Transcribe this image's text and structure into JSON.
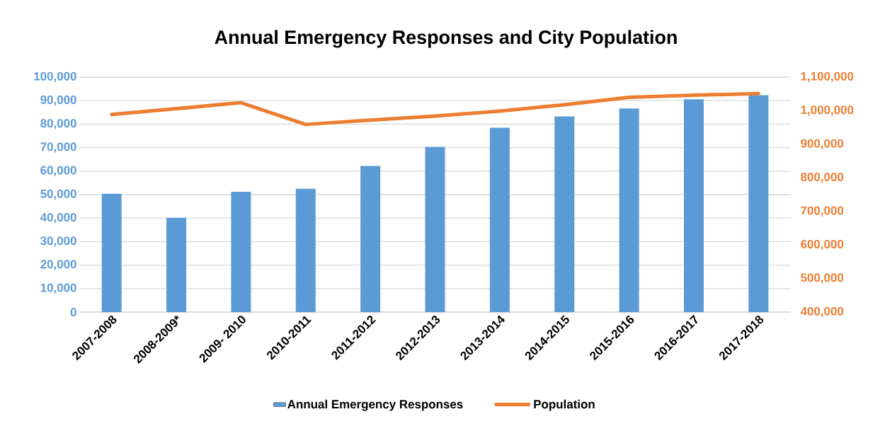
{
  "chart_data": {
    "type": "bar",
    "title": "Annual Emergency Responses and City Population",
    "categories": [
      "2007-2008",
      "2008-2009*",
      "2009- 2010",
      "2010-2011",
      "2011-2012",
      "2012-2013",
      "2013-2014",
      "2014-2015",
      "2015-2016",
      "2016-2017",
      "2017-2018"
    ],
    "series": [
      {
        "name": "Annual Emergency Responses",
        "color": "#5b9bd5",
        "values": [
          50400,
          40100,
          51200,
          52500,
          62200,
          70300,
          78500,
          83300,
          86700,
          90600,
          92300
        ]
      },
      {
        "name": "Population",
        "type": "line",
        "axis": "y2",
        "color": "#ed7d31",
        "values": [
          989000,
          1006000,
          1024000,
          959000,
          972000,
          984000,
          999000,
          1018000,
          1040000,
          1046000,
          1051000
        ]
      }
    ],
    "ylim": [
      0,
      100000
    ],
    "yticks": [
      0,
      {
        "value": 10000,
        "label": "10,000"
      },
      {
        "value": 20000,
        "label": "20,000"
      },
      {
        "value": 30000,
        "label": "30,000"
      },
      {
        "value": 40000,
        "label": "40,000"
      },
      {
        "value": 50000,
        "label": "50,000"
      },
      {
        "value": 60000,
        "label": "60,000"
      },
      {
        "value": 70000,
        "label": "70,000"
      },
      {
        "value": 80000,
        "label": "80,000"
      },
      {
        "value": 90000,
        "label": "90,000"
      },
      {
        "value": 100000,
        "label": "100,000"
      }
    ],
    "y2lim": [
      400000,
      1100000
    ],
    "y2ticks": [
      {
        "value": 400000,
        "label": "400,000"
      },
      {
        "value": 500000,
        "label": "500,000"
      },
      {
        "value": 600000,
        "label": "600,000"
      },
      {
        "value": 700000,
        "label": "700,000"
      },
      {
        "value": 800000,
        "label": "800,000"
      },
      {
        "value": 900000,
        "label": "900,000"
      },
      {
        "value": 1000000,
        "label": "1,000,000"
      },
      {
        "value": 1100000,
        "label": "1,100,000"
      }
    ],
    "grid": "y",
    "legend": "bottom",
    "marker": "none",
    "line_style": "solid"
  }
}
